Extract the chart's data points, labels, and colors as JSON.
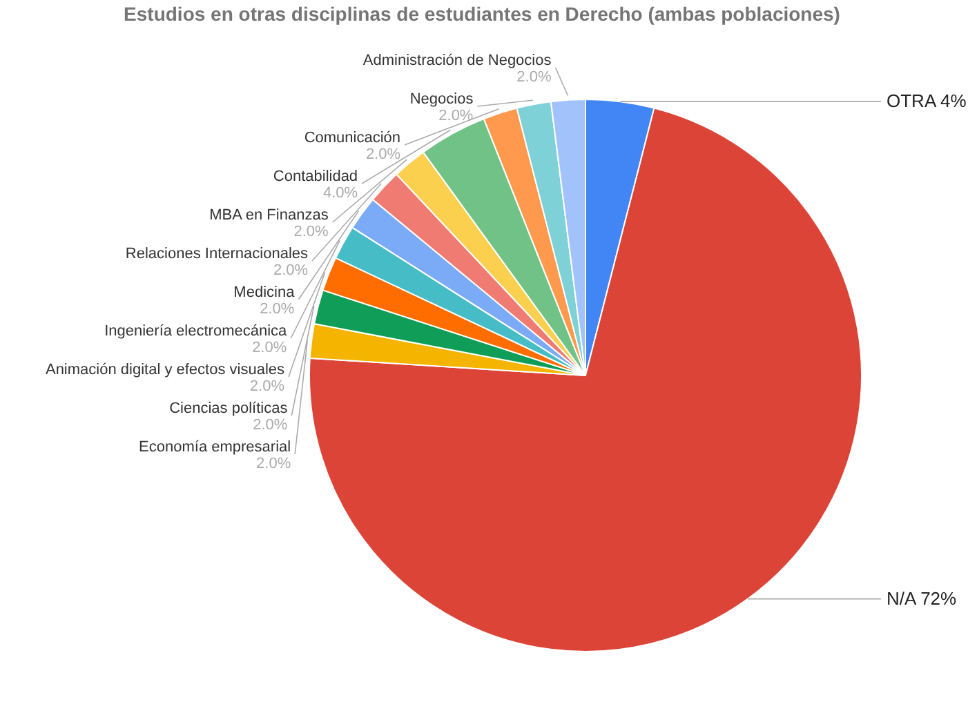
{
  "chart_data": {
    "type": "pie",
    "title": "Estudios en otras disciplinas de estudiantes en Derecho (ambas poblaciones)",
    "categories": [
      "OTRA",
      "N/A",
      "Economía empresarial",
      "Ciencias políticas",
      "Animación digital y efectos visuales",
      "Ingeniería electromecánica",
      "Medicina",
      "Relaciones Internacionales",
      "MBA en Finanzas",
      "Contabilidad",
      "Comunicación",
      "Negocios",
      "Administración de Negocios"
    ],
    "values": [
      4,
      72,
      2,
      2,
      2,
      2,
      2,
      2,
      2,
      4,
      2,
      2,
      2
    ],
    "colors": [
      "#4285f4",
      "#db4437",
      "#f4b400",
      "#0f9d58",
      "#ff6d01",
      "#46bdc6",
      "#7baaf7",
      "#f07b72",
      "#fcd04f",
      "#71c287",
      "#ff994d",
      "#7ed1d7",
      "#a1c2fa"
    ],
    "value_labels": [
      "4%",
      "72%",
      "2.0%",
      "2.0%",
      "2.0%",
      "2.0%",
      "2.0%",
      "2.0%",
      "2.0%",
      "4.0%",
      "2.0%",
      "2.0%",
      "2.0%"
    ],
    "legend": false
  }
}
